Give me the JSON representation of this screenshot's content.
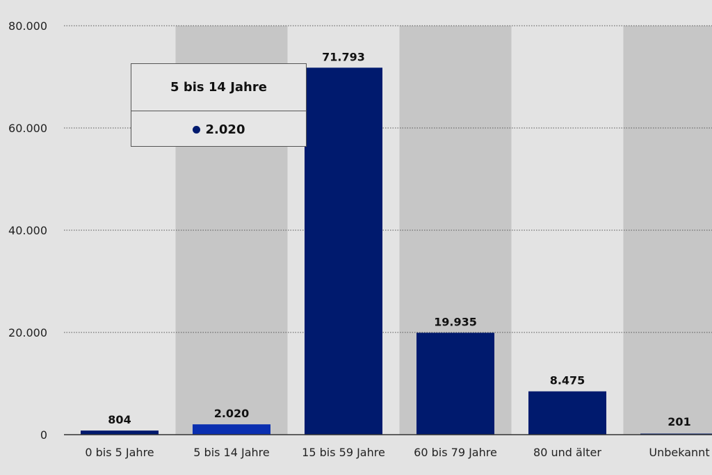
{
  "chart_data": {
    "type": "bar",
    "categories": [
      "0 bis 5 Jahre",
      "5 bis 14 Jahre",
      "15 bis 59 Jahre",
      "60 bis 79 Jahre",
      "80 und älter",
      "Unbekannt"
    ],
    "values": [
      804,
      2020,
      71793,
      19935,
      8475,
      201
    ],
    "value_labels": [
      "804",
      "2.020",
      "71.793",
      "19.935",
      "8.475",
      "201"
    ],
    "yticks": [
      0,
      20000,
      40000,
      60000,
      80000
    ],
    "ytick_labels": [
      "0",
      "20.000",
      "40.000",
      "60.000",
      "80.000"
    ],
    "ylim": [
      0,
      80000
    ],
    "grid": true,
    "highlighted_category": "5 bis 14 Jahre",
    "colors": {
      "bar": "#001a6e",
      "bar_highlight": "#0a2fb0",
      "band_dark": "#c6c6c6",
      "band_light": "#e3e3e3"
    }
  },
  "tooltip": {
    "title": "5 bis 14 Jahre",
    "value": "2.020",
    "dot_color": "#001a6e"
  }
}
